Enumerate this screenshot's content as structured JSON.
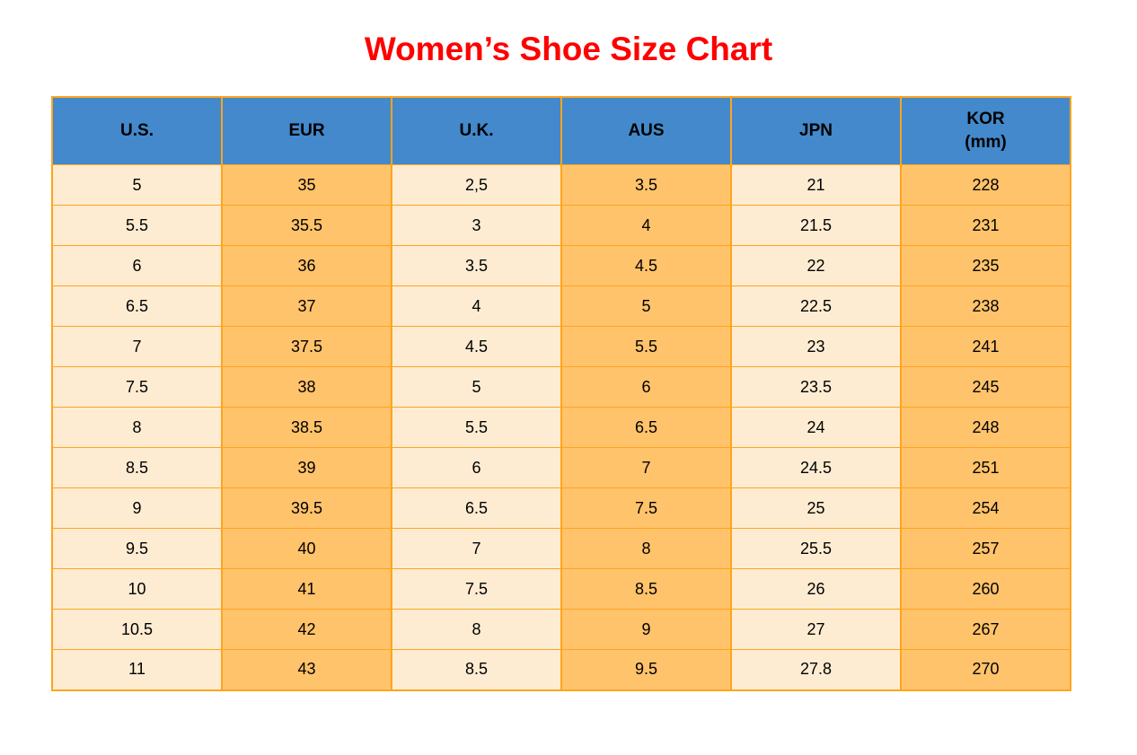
{
  "title": {
    "text": "Women’s Shoe Size Chart"
  },
  "colors": {
    "title_red": "#ff0000",
    "header_blue": "#4389cb",
    "cell_cream": "#fdecd2",
    "cell_orange": "#ffc36b",
    "border_orange": "#ffa41e",
    "text_black": "#000000"
  },
  "chart_data": {
    "type": "table",
    "title": "Women’s Shoe Size Chart",
    "columns": [
      "U.S.",
      "EUR",
      "U.K.",
      "AUS",
      "JPN",
      "KOR\n(mm)"
    ],
    "rows": [
      [
        "5",
        "35",
        "2,5",
        "3.5",
        "21",
        "228"
      ],
      [
        "5.5",
        "35.5",
        "3",
        "4",
        "21.5",
        "231"
      ],
      [
        "6",
        "36",
        "3.5",
        "4.5",
        "22",
        "235"
      ],
      [
        "6.5",
        "37",
        "4",
        "5",
        "22.5",
        "238"
      ],
      [
        "7",
        "37.5",
        "4.5",
        "5.5",
        "23",
        "241"
      ],
      [
        "7.5",
        "38",
        "5",
        "6",
        "23.5",
        "245"
      ],
      [
        "8",
        "38.5",
        "5.5",
        "6.5",
        "24",
        "248"
      ],
      [
        "8.5",
        "39",
        "6",
        "7",
        "24.5",
        "251"
      ],
      [
        "9",
        "39.5",
        "6.5",
        "7.5",
        "25",
        "254"
      ],
      [
        "9.5",
        "40",
        "7",
        "8",
        "25.5",
        "257"
      ],
      [
        "10",
        "41",
        "7.5",
        "8.5",
        "26",
        "260"
      ],
      [
        "10.5",
        "42",
        "8",
        "9",
        "27",
        "267"
      ],
      [
        "11",
        "43",
        "8.5",
        "9.5",
        "27.8",
        "270"
      ]
    ]
  }
}
